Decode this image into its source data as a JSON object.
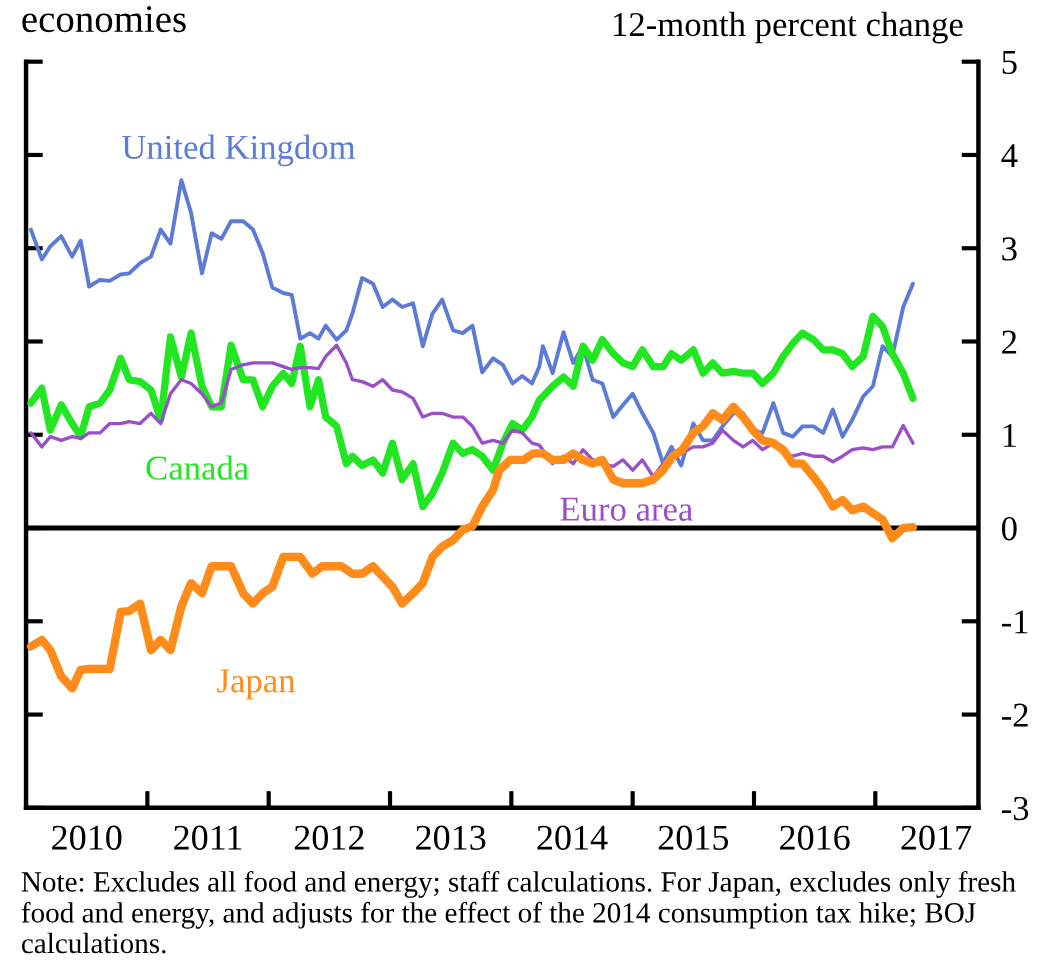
{
  "chart_data": {
    "type": "line",
    "title": "economies",
    "ylabel": "12-month percent change",
    "annotations": [
      "Note: Excludes all food and energy; staff calculations. For Japan, excludes only fresh food and energy, and adjusts for the effect of the 2014 consumption tax hike; BOJ calculations."
    ],
    "xlim": [
      2010,
      2017.85
    ],
    "xticks": [
      {
        "value": 2010.5,
        "label": "2010"
      },
      {
        "value": 2011.5,
        "label": "2011"
      },
      {
        "value": 2012.5,
        "label": "2012"
      },
      {
        "value": 2013.5,
        "label": "2013"
      },
      {
        "value": 2014.5,
        "label": "2014"
      },
      {
        "value": 2015.5,
        "label": "2015"
      },
      {
        "value": 2016.5,
        "label": "2016"
      },
      {
        "value": 2017.5,
        "label": "2017"
      },
      {
        "value": 2011,
        "label": null
      },
      {
        "value": 2012,
        "label": null
      },
      {
        "value": 2013,
        "label": null
      },
      {
        "value": 2014,
        "label": null
      },
      {
        "value": 2015,
        "label": null
      },
      {
        "value": 2016,
        "label": null
      },
      {
        "value": 2017,
        "label": null
      }
    ],
    "ylim": [
      -3,
      5
    ],
    "yticks": [
      -3,
      -2,
      -1,
      0,
      1,
      2,
      3,
      4,
      5
    ],
    "ref_lines": [
      {
        "axis": "y",
        "value": 0,
        "color": "#000000"
      }
    ],
    "grid": false,
    "legend": false,
    "series": [
      {
        "name": "United Kingdom",
        "color": "#5b7bd6",
        "x": [
          2010.04,
          2010.13,
          2010.2,
          2010.29,
          2010.38,
          2010.45,
          2010.52,
          2010.61,
          2010.69,
          2010.78,
          2010.85,
          2010.94,
          2011.03,
          2011.11,
          2011.19,
          2011.28,
          2011.36,
          2011.45,
          2011.53,
          2011.61,
          2011.69,
          2011.79,
          2011.87,
          2011.95,
          2012.03,
          2012.12,
          2012.19,
          2012.26,
          2012.34,
          2012.41,
          2012.47,
          2012.56,
          2012.64,
          2012.69,
          2012.77,
          2012.86,
          2012.94,
          2013.02,
          2013.1,
          2013.19,
          2013.27,
          2013.35,
          2013.43,
          2013.52,
          2013.6,
          2013.68,
          2013.76,
          2013.85,
          2013.93,
          2014.01,
          2014.09,
          2014.17,
          2014.23,
          2014.26,
          2014.34,
          2014.43,
          2014.51,
          2014.59,
          2014.67,
          2014.75,
          2014.84,
          2014.92,
          2015.0,
          2015.08,
          2015.17,
          2015.25,
          2015.32,
          2015.4,
          2015.5,
          2015.58,
          2015.66,
          2015.74,
          2015.83,
          2015.91,
          2015.99,
          2016.07,
          2016.16,
          2016.24,
          2016.32,
          2016.4,
          2016.49,
          2016.57,
          2016.65,
          2016.73,
          2016.81,
          2016.9,
          2016.98,
          2017.06,
          2017.14,
          2017.23,
          2017.31
        ],
        "values": [
          3.2,
          2.88,
          3.02,
          3.13,
          2.91,
          3.08,
          2.59,
          2.66,
          2.65,
          2.72,
          2.73,
          2.84,
          2.91,
          3.2,
          3.05,
          3.73,
          3.38,
          2.73,
          3.16,
          3.1,
          3.29,
          3.29,
          3.2,
          2.95,
          2.58,
          2.52,
          2.5,
          2.03,
          2.09,
          2.03,
          2.17,
          2.02,
          2.12,
          2.3,
          2.68,
          2.62,
          2.37,
          2.45,
          2.37,
          2.41,
          1.95,
          2.3,
          2.45,
          2.12,
          2.09,
          2.17,
          1.67,
          1.82,
          1.75,
          1.55,
          1.63,
          1.55,
          1.73,
          1.95,
          1.66,
          2.1,
          1.77,
          1.95,
          1.59,
          1.55,
          1.19,
          1.32,
          1.44,
          1.23,
          1.02,
          0.69,
          0.87,
          0.67,
          1.12,
          0.94,
          0.94,
          1.09,
          1.23,
          1.23,
          1.05,
          1.02,
          1.34,
          1.02,
          0.98,
          1.09,
          1.09,
          1.02,
          1.27,
          0.98,
          1.16,
          1.41,
          1.52,
          1.95,
          1.84,
          2.37,
          2.62
        ]
      },
      {
        "name": "Canada",
        "color": "#22e622",
        "x": [
          2010.04,
          2010.13,
          2010.2,
          2010.29,
          2010.38,
          2010.45,
          2010.52,
          2010.61,
          2010.69,
          2010.78,
          2010.85,
          2010.94,
          2011.03,
          2011.11,
          2011.19,
          2011.28,
          2011.36,
          2011.45,
          2011.53,
          2011.61,
          2011.69,
          2011.79,
          2011.87,
          2011.95,
          2012.03,
          2012.12,
          2012.19,
          2012.26,
          2012.34,
          2012.41,
          2012.47,
          2012.56,
          2012.64,
          2012.69,
          2012.77,
          2012.86,
          2012.94,
          2013.02,
          2013.1,
          2013.19,
          2013.27,
          2013.35,
          2013.43,
          2013.52,
          2013.6,
          2013.68,
          2013.76,
          2013.85,
          2013.93,
          2014.01,
          2014.09,
          2014.17,
          2014.23,
          2014.34,
          2014.43,
          2014.51,
          2014.59,
          2014.67,
          2014.75,
          2014.84,
          2014.92,
          2015.0,
          2015.08,
          2015.17,
          2015.25,
          2015.32,
          2015.4,
          2015.5,
          2015.58,
          2015.66,
          2015.74,
          2015.83,
          2015.91,
          2015.99,
          2016.07,
          2016.16,
          2016.24,
          2016.32,
          2016.4,
          2016.49,
          2016.57,
          2016.65,
          2016.73,
          2016.81,
          2016.9,
          2016.98,
          2017.06,
          2017.14,
          2017.23,
          2017.31
        ],
        "values": [
          1.34,
          1.5,
          1.05,
          1.32,
          1.12,
          0.98,
          1.3,
          1.34,
          1.48,
          1.82,
          1.59,
          1.57,
          1.48,
          1.16,
          2.05,
          1.62,
          2.09,
          1.52,
          1.3,
          1.3,
          1.96,
          1.59,
          1.59,
          1.3,
          1.52,
          1.66,
          1.55,
          1.95,
          1.3,
          1.59,
          1.19,
          1.09,
          0.69,
          0.77,
          0.67,
          0.73,
          0.59,
          0.91,
          0.52,
          0.69,
          0.23,
          0.37,
          0.59,
          0.91,
          0.8,
          0.84,
          0.77,
          0.62,
          0.91,
          1.12,
          1.05,
          1.19,
          1.37,
          1.52,
          1.62,
          1.52,
          1.95,
          1.8,
          2.02,
          1.87,
          1.77,
          1.73,
          1.91,
          1.73,
          1.73,
          1.87,
          1.8,
          1.91,
          1.66,
          1.77,
          1.66,
          1.68,
          1.66,
          1.66,
          1.55,
          1.66,
          1.84,
          1.98,
          2.09,
          2.02,
          1.91,
          1.91,
          1.87,
          1.73,
          1.84,
          2.27,
          2.16,
          1.87,
          1.66,
          1.39
        ]
      },
      {
        "name": "Euro area",
        "color": "#9a4fc9",
        "x": [
          2010.04,
          2010.13,
          2010.2,
          2010.29,
          2010.38,
          2010.45,
          2010.52,
          2010.61,
          2010.69,
          2010.78,
          2010.85,
          2010.94,
          2011.03,
          2011.11,
          2011.19,
          2011.28,
          2011.36,
          2011.45,
          2011.53,
          2011.61,
          2011.69,
          2011.79,
          2011.87,
          2011.95,
          2012.03,
          2012.12,
          2012.19,
          2012.26,
          2012.34,
          2012.41,
          2012.47,
          2012.56,
          2012.64,
          2012.69,
          2012.77,
          2012.86,
          2012.94,
          2013.02,
          2013.1,
          2013.19,
          2013.27,
          2013.35,
          2013.43,
          2013.52,
          2013.6,
          2013.68,
          2013.76,
          2013.85,
          2013.93,
          2014.01,
          2014.09,
          2014.17,
          2014.23,
          2014.34,
          2014.43,
          2014.51,
          2014.59,
          2014.67,
          2014.75,
          2014.84,
          2014.92,
          2015.0,
          2015.08,
          2015.17,
          2015.25,
          2015.32,
          2015.4,
          2015.5,
          2015.58,
          2015.66,
          2015.74,
          2015.83,
          2015.91,
          2015.99,
          2016.07,
          2016.16,
          2016.24,
          2016.32,
          2016.4,
          2016.49,
          2016.57,
          2016.65,
          2016.73,
          2016.81,
          2016.9,
          2016.98,
          2017.06,
          2017.14,
          2017.23,
          2017.31
        ],
        "values": [
          1.02,
          0.87,
          0.98,
          0.94,
          0.98,
          0.96,
          1.02,
          1.02,
          1.12,
          1.12,
          1.14,
          1.12,
          1.23,
          1.12,
          1.44,
          1.59,
          1.55,
          1.44,
          1.3,
          1.34,
          1.7,
          1.75,
          1.77,
          1.77,
          1.77,
          1.73,
          1.7,
          1.72,
          1.72,
          1.71,
          1.84,
          1.96,
          1.77,
          1.59,
          1.57,
          1.52,
          1.59,
          1.48,
          1.46,
          1.39,
          1.19,
          1.23,
          1.23,
          1.19,
          1.19,
          1.09,
          0.91,
          0.94,
          0.91,
          1.05,
          1.02,
          0.91,
          0.89,
          0.69,
          0.77,
          0.69,
          0.84,
          0.73,
          0.69,
          0.66,
          0.73,
          0.62,
          0.73,
          0.55,
          0.69,
          0.73,
          0.8,
          0.87,
          0.87,
          0.91,
          1.05,
          0.94,
          0.87,
          0.94,
          0.84,
          0.91,
          0.8,
          0.77,
          0.8,
          0.77,
          0.77,
          0.71,
          0.77,
          0.84,
          0.86,
          0.84,
          0.87,
          0.87,
          1.1,
          0.91
        ]
      },
      {
        "name": "Japan",
        "color": "#ff8c1a",
        "x": [
          2010.04,
          2010.13,
          2010.2,
          2010.29,
          2010.38,
          2010.45,
          2010.52,
          2010.61,
          2010.69,
          2010.78,
          2010.85,
          2010.94,
          2011.03,
          2011.11,
          2011.19,
          2011.28,
          2011.36,
          2011.45,
          2011.53,
          2011.61,
          2011.69,
          2011.79,
          2011.87,
          2011.95,
          2012.03,
          2012.12,
          2012.19,
          2012.26,
          2012.36,
          2012.44,
          2012.52,
          2012.6,
          2012.69,
          2012.77,
          2012.86,
          2012.94,
          2013.02,
          2013.1,
          2013.19,
          2013.27,
          2013.35,
          2013.43,
          2013.52,
          2013.6,
          2013.68,
          2013.76,
          2013.85,
          2013.9,
          2013.99,
          2014.1,
          2014.18,
          2014.26,
          2014.34,
          2014.43,
          2014.51,
          2014.59,
          2014.67,
          2014.75,
          2014.84,
          2014.92,
          2015.0,
          2015.08,
          2015.17,
          2015.25,
          2015.33,
          2015.41,
          2015.5,
          2015.58,
          2015.66,
          2015.74,
          2015.83,
          2015.91,
          2015.99,
          2016.07,
          2016.16,
          2016.24,
          2016.32,
          2016.4,
          2016.49,
          2016.57,
          2016.65,
          2016.73,
          2016.81,
          2016.9,
          2016.98,
          2017.06,
          2017.14,
          2017.23,
          2017.31
        ],
        "values": [
          -1.27,
          -1.2,
          -1.31,
          -1.59,
          -1.72,
          -1.52,
          -1.51,
          -1.51,
          -1.51,
          -0.9,
          -0.89,
          -0.81,
          -1.31,
          -1.2,
          -1.31,
          -0.84,
          -0.59,
          -0.7,
          -0.41,
          -0.41,
          -0.41,
          -0.7,
          -0.81,
          -0.7,
          -0.63,
          -0.31,
          -0.31,
          -0.31,
          -0.49,
          -0.41,
          -0.41,
          -0.41,
          -0.49,
          -0.49,
          -0.41,
          -0.52,
          -0.63,
          -0.81,
          -0.7,
          -0.59,
          -0.31,
          -0.2,
          -0.13,
          -0.02,
          0.02,
          0.23,
          0.41,
          0.62,
          0.73,
          0.73,
          0.8,
          0.8,
          0.73,
          0.73,
          0.8,
          0.73,
          0.69,
          0.73,
          0.52,
          0.48,
          0.48,
          0.48,
          0.52,
          0.62,
          0.77,
          0.84,
          1.02,
          1.09,
          1.23,
          1.16,
          1.3,
          1.19,
          1.05,
          0.94,
          0.91,
          0.84,
          0.69,
          0.69,
          0.55,
          0.41,
          0.23,
          0.3,
          0.19,
          0.23,
          0.16,
          0.09,
          -0.11,
          0.0,
          0.01
        ]
      }
    ]
  }
}
